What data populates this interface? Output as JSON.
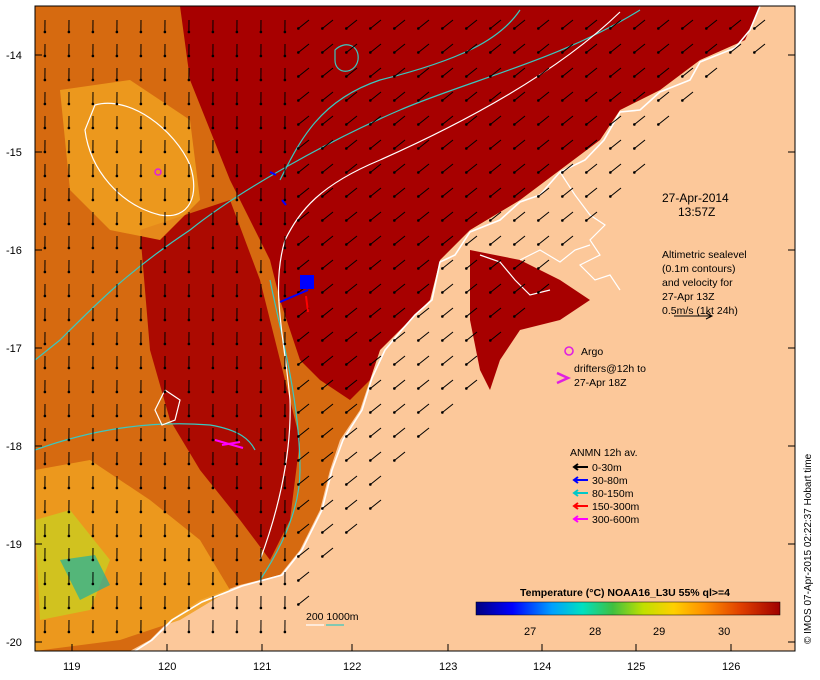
{
  "map": {
    "x_axis": {
      "ticks": [
        "119",
        "120",
        "121",
        "122",
        "123",
        "124",
        "125",
        "126"
      ]
    },
    "y_axis": {
      "ticks": [
        "-14",
        "-15",
        "-16",
        "-17",
        "-18",
        "-19",
        "-20"
      ]
    },
    "colors": {
      "land": "#fcc89a",
      "warm_sst": "#a70000",
      "mid_sst": "#d66a10",
      "cool_sst": "#f0a020",
      "contour_cyan": "#3ac8c0",
      "contour_white": "#ffffff"
    }
  },
  "timestamp": {
    "date": "27-Apr-2014",
    "time": "13:57Z"
  },
  "altimetry_note": {
    "lines": [
      "Altimetric sealevel",
      "(0.1m contours)",
      "and velocity for",
      "27-Apr 13Z",
      "0.5m/s (1kt 24h)"
    ]
  },
  "argo": {
    "label": "Argo",
    "color": "#e020e0"
  },
  "drifters": {
    "lines": [
      "drifters@12h to",
      "27-Apr 18Z"
    ],
    "color": "#e020e0"
  },
  "anmn": {
    "title": "ANMN 12h av.",
    "items": [
      {
        "label": "0-30m",
        "color": "#000000"
      },
      {
        "label": "30-80m",
        "color": "#0000ff"
      },
      {
        "label": "80-150m",
        "color": "#00c8c8"
      },
      {
        "label": "150-300m",
        "color": "#ff0000"
      },
      {
        "label": "300-600m",
        "color": "#ff00ff"
      }
    ]
  },
  "depth_legend": {
    "label": "200  1000m"
  },
  "colorbar": {
    "title": "Temperature (°C) NOAA16_L3U 55% ql>=4",
    "ticks": [
      "27",
      "28",
      "29",
      "30"
    ]
  },
  "credit": "© IMOS 07-Apr-2015 02:22:37 Hobart time"
}
